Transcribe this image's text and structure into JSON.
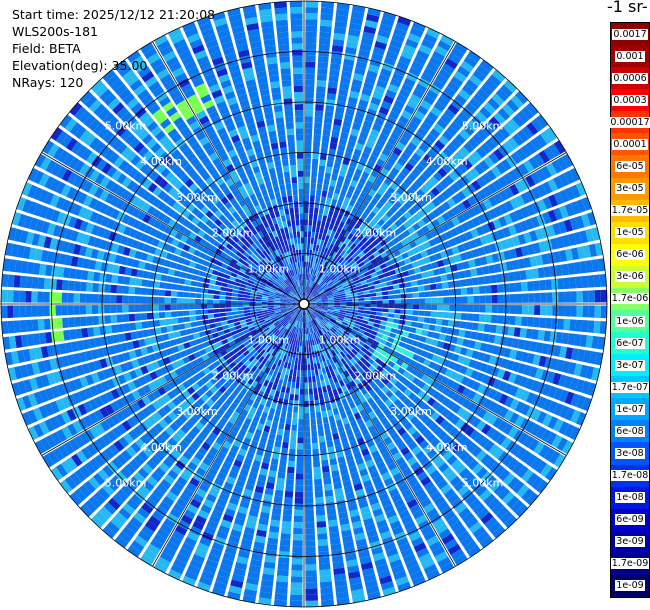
{
  "info": {
    "start_time": "Start time: 2025/12/12 21:20:08",
    "instrument": "WLS200s-181",
    "field": "Field: BETA",
    "elevation": "Elevation(deg): 35.00",
    "nrays": "NRays: 120"
  },
  "colorbar": {
    "unit_title": "-1 sr-",
    "labels": [
      "0.0017",
      "0.001",
      "0.0006",
      "0.0003",
      "0.00017",
      "0.0001",
      "6e-05",
      "3e-05",
      "1.7e-05",
      "1e-05",
      "6e-06",
      "3e-06",
      "1.7e-06",
      "1e-06",
      "6e-07",
      "3e-07",
      "1.7e-07",
      "1e-07",
      "6e-08",
      "3e-08",
      "1.7e-08",
      "1e-08",
      "6e-09",
      "3e-09",
      "1.7e-09",
      "1e-09"
    ],
    "colors": [
      "#8b0000",
      "#a00000",
      "#cc0000",
      "#ff0000",
      "#ff3300",
      "#ff5500",
      "#ff7700",
      "#ff9900",
      "#ffbb00",
      "#ffdd00",
      "#ffff00",
      "#ccff33",
      "#88ff66",
      "#55ff99",
      "#22ffcc",
      "#00f0ff",
      "#00c8ff",
      "#00a6ff",
      "#0080ff",
      "#0055ff",
      "#0033ee",
      "#0018dd",
      "#0000cc",
      "#0000aa",
      "#000088",
      "#000066"
    ]
  },
  "chart_data": {
    "type": "heatmap",
    "projection": "polar (PPI)",
    "nrays": 120,
    "range_rings_km": [
      1.0,
      2.0,
      3.0,
      4.0,
      5.0
    ],
    "ring_labels": [
      "1.00km",
      "2.00km",
      "3.00km",
      "4.00km",
      "5.00km"
    ],
    "max_range_km": 6.0,
    "spoke_count": 12,
    "dominant_value_colors": {
      "background": "#0b77ee",
      "light": "#25b8f2",
      "cyan": "#33eedd",
      "green": "#7bff55",
      "dark": "#1128c8"
    }
  }
}
